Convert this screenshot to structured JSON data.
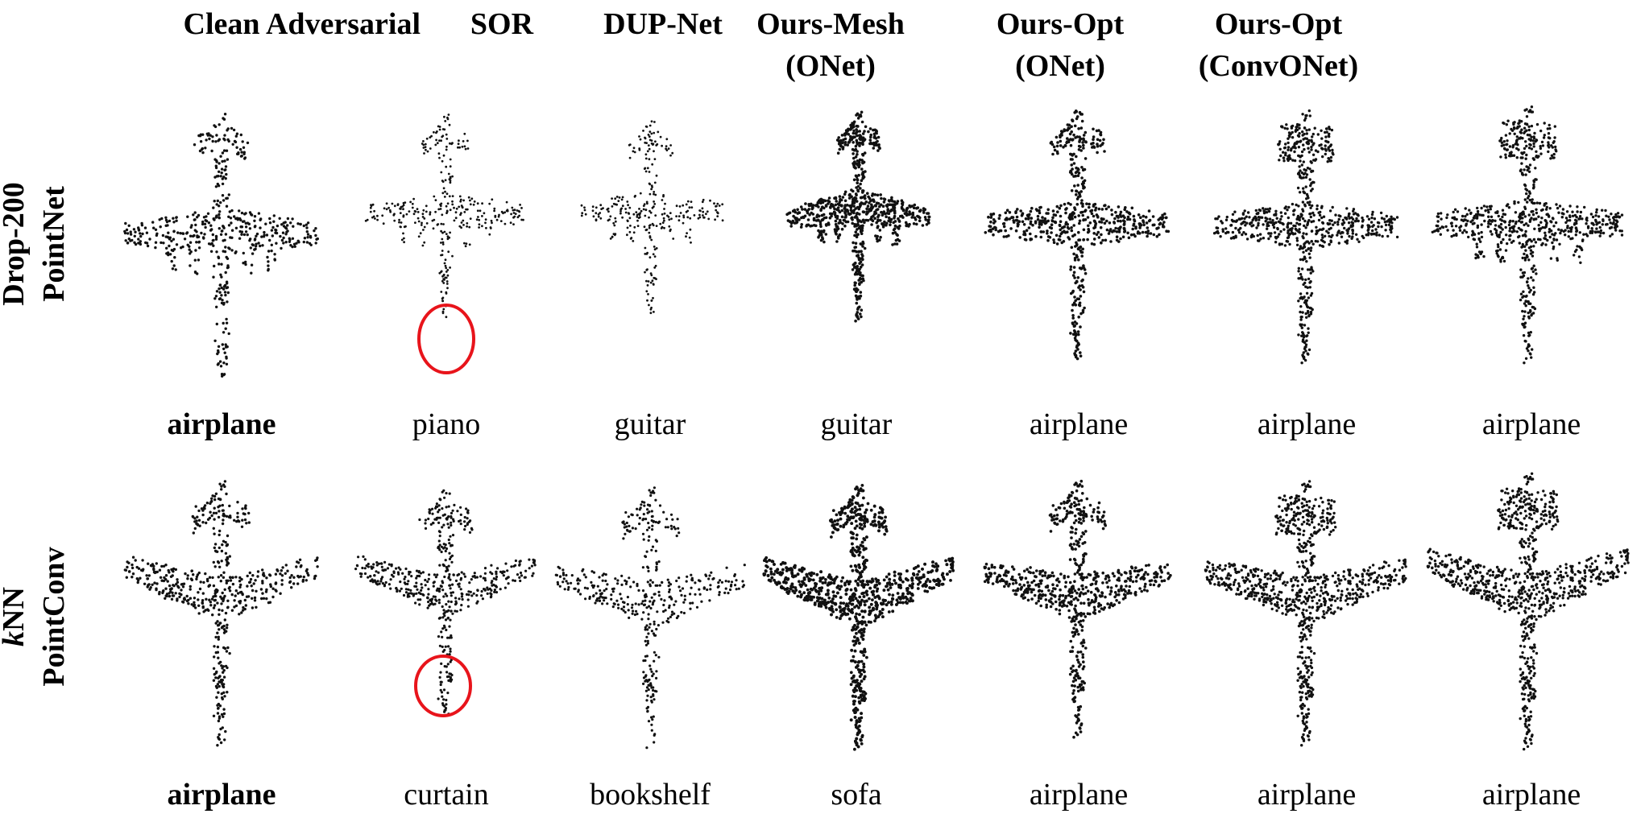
{
  "columns": [
    {
      "label_line1": "Clean",
      "label_line2": ""
    },
    {
      "label_line1": "Adversarial",
      "label_line2": ""
    },
    {
      "label_line1": "SOR",
      "label_line2": ""
    },
    {
      "label_line1": "DUP-Net",
      "label_line2": ""
    },
    {
      "label_line1": "Ours-Mesh",
      "label_line2": "(ONet)"
    },
    {
      "label_line1": "Ours-Opt",
      "label_line2": "(ONet)"
    },
    {
      "label_line1": "Ours-Opt",
      "label_line2": "(ConvONet)"
    }
  ],
  "rows": [
    {
      "label_line1": "Drop-200",
      "label_line2": "PointNet",
      "predictions": [
        "airplane",
        "piano",
        "guitar",
        "guitar",
        "airplane",
        "airplane",
        "airplane"
      ]
    },
    {
      "label_line1_italic": "k",
      "label_line1": "NN",
      "label_line2": "PointConv",
      "predictions": [
        "airplane",
        "curtain",
        "bookshelf",
        "sofa",
        "airplane",
        "airplane",
        "airplane"
      ]
    }
  ],
  "highlight_color": "#e8141b"
}
